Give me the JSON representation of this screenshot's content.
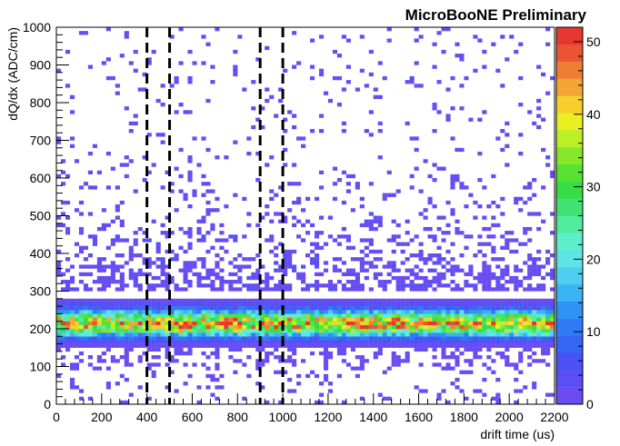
{
  "chart_data": {
    "type": "heatmap",
    "title": "MicroBooNE Preliminary",
    "xlabel": "drift time (us)",
    "ylabel": "dQ/dx (ADC/cm)",
    "xlim": [
      0,
      2200
    ],
    "ylim": [
      0,
      1000
    ],
    "x_ticks": [
      0,
      200,
      400,
      600,
      800,
      1000,
      1200,
      1400,
      1600,
      1800,
      2000,
      2200
    ],
    "y_ticks": [
      0,
      100,
      200,
      300,
      400,
      500,
      600,
      700,
      800,
      900,
      1000
    ],
    "x_tick_labels": [
      "0",
      "200",
      "400",
      "600",
      "800",
      "1000",
      "1200",
      "1400",
      "1600",
      "1800",
      "2000",
      "2200"
    ],
    "y_tick_labels": [
      "0",
      "100",
      "200",
      "300",
      "400",
      "500",
      "600",
      "700",
      "800",
      "900",
      "1000"
    ],
    "bin_width_x": 20,
    "bin_width_y": 10,
    "z_range": [
      0,
      52
    ],
    "colorbar_ticks": [
      0,
      10,
      20,
      30,
      40,
      50
    ],
    "colorbar_tick_labels": [
      "0",
      "10",
      "20",
      "30",
      "40",
      "50"
    ],
    "dashed_lines_x": [
      400,
      500,
      900,
      1000
    ],
    "band": {
      "y_peak": 213,
      "y_sigma": 22,
      "peak_counts": 36,
      "hotspots": [
        {
          "x": 780,
          "y": 210,
          "counts": 52
        },
        {
          "x": 560,
          "y": 210,
          "counts": 48
        },
        {
          "x": 1340,
          "y": 215,
          "counts": 46
        },
        {
          "x": 1500,
          "y": 215,
          "counts": 44
        },
        {
          "x": 1000,
          "y": 220,
          "counts": 42
        }
      ],
      "tail_upper_to": 330,
      "tail_lower_to": 150
    },
    "palette": [
      "#6a4cf3",
      "#5a4ff5",
      "#4a52f5",
      "#3566f5",
      "#2f7af5",
      "#2f93f5",
      "#39b3f2",
      "#4fcff0",
      "#5ee4e6",
      "#5cefc9",
      "#52ec9e",
      "#3fe371",
      "#35de45",
      "#56e133",
      "#86e72b",
      "#bbef27",
      "#ebef22",
      "#f6cf2e",
      "#f3a635",
      "#ef7d33",
      "#eb5432",
      "#e8372f"
    ]
  }
}
